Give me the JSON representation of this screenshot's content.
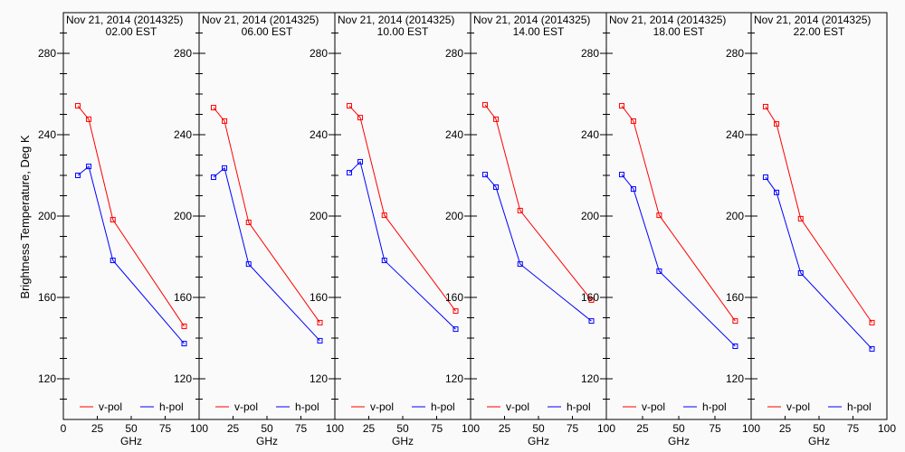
{
  "chart_data": {
    "type": "line",
    "ylabel": "Brightness Temperature, Deg K",
    "xlabel": "GHz",
    "x": [
      10.65,
      18.7,
      36.5,
      89
    ],
    "xlim": [
      0,
      100
    ],
    "ylim": [
      100,
      300
    ],
    "xticks": [
      0,
      25,
      50,
      75,
      100
    ],
    "yticks": [
      120,
      160,
      200,
      240,
      280
    ],
    "legend": [
      "v-pol",
      "h-pol"
    ],
    "legend_placement": "bottom",
    "colors": {
      "v-pol": "#ff0000",
      "h-pol": "#0000ff"
    },
    "panels": [
      {
        "title": "Nov 21, 2014 (2014325)",
        "subtitle": "02.00 EST",
        "series": [
          {
            "name": "v-pol",
            "values": [
              254.2,
              247.6,
              198.2,
              145.8
            ]
          },
          {
            "name": "h-pol",
            "values": [
              220.0,
              224.4,
              178.2,
              137.3
            ]
          }
        ]
      },
      {
        "title": "Nov 21, 2014 (2014325)",
        "subtitle": "06.00 EST",
        "series": [
          {
            "name": "v-pol",
            "values": [
              253.3,
              246.7,
              196.9,
              147.6
            ]
          },
          {
            "name": "h-pol",
            "values": [
              219.1,
              223.6,
              176.4,
              138.7
            ]
          }
        ]
      },
      {
        "title": "Nov 21, 2014 (2014325)",
        "subtitle": "10.00 EST",
        "series": [
          {
            "name": "v-pol",
            "values": [
              254.2,
              248.4,
              200.4,
              153.3
            ]
          },
          {
            "name": "h-pol",
            "values": [
              221.3,
              226.7,
              178.2,
              144.4
            ]
          }
        ]
      },
      {
        "title": "Nov 21, 2014 (2014325)",
        "subtitle": "14.00 EST",
        "series": [
          {
            "name": "v-pol",
            "values": [
              254.7,
              247.6,
              202.7,
              158.7
            ]
          },
          {
            "name": "h-pol",
            "values": [
              220.4,
              214.2,
              176.4,
              148.4
            ]
          }
        ]
      },
      {
        "title": "Nov 21, 2014 (2014325)",
        "subtitle": "18.00 EST",
        "series": [
          {
            "name": "v-pol",
            "values": [
              254.2,
              246.7,
              200.4,
              148.4
            ]
          },
          {
            "name": "h-pol",
            "values": [
              220.4,
              213.3,
              172.9,
              136.0
            ]
          }
        ]
      },
      {
        "title": "Nov 21, 2014 (2014325)",
        "subtitle": "22.00 EST",
        "series": [
          {
            "name": "v-pol",
            "values": [
              253.8,
              245.3,
              198.7,
              147.6
            ]
          },
          {
            "name": "h-pol",
            "values": [
              219.1,
              211.6,
              172.0,
              134.7
            ]
          }
        ]
      }
    ]
  }
}
